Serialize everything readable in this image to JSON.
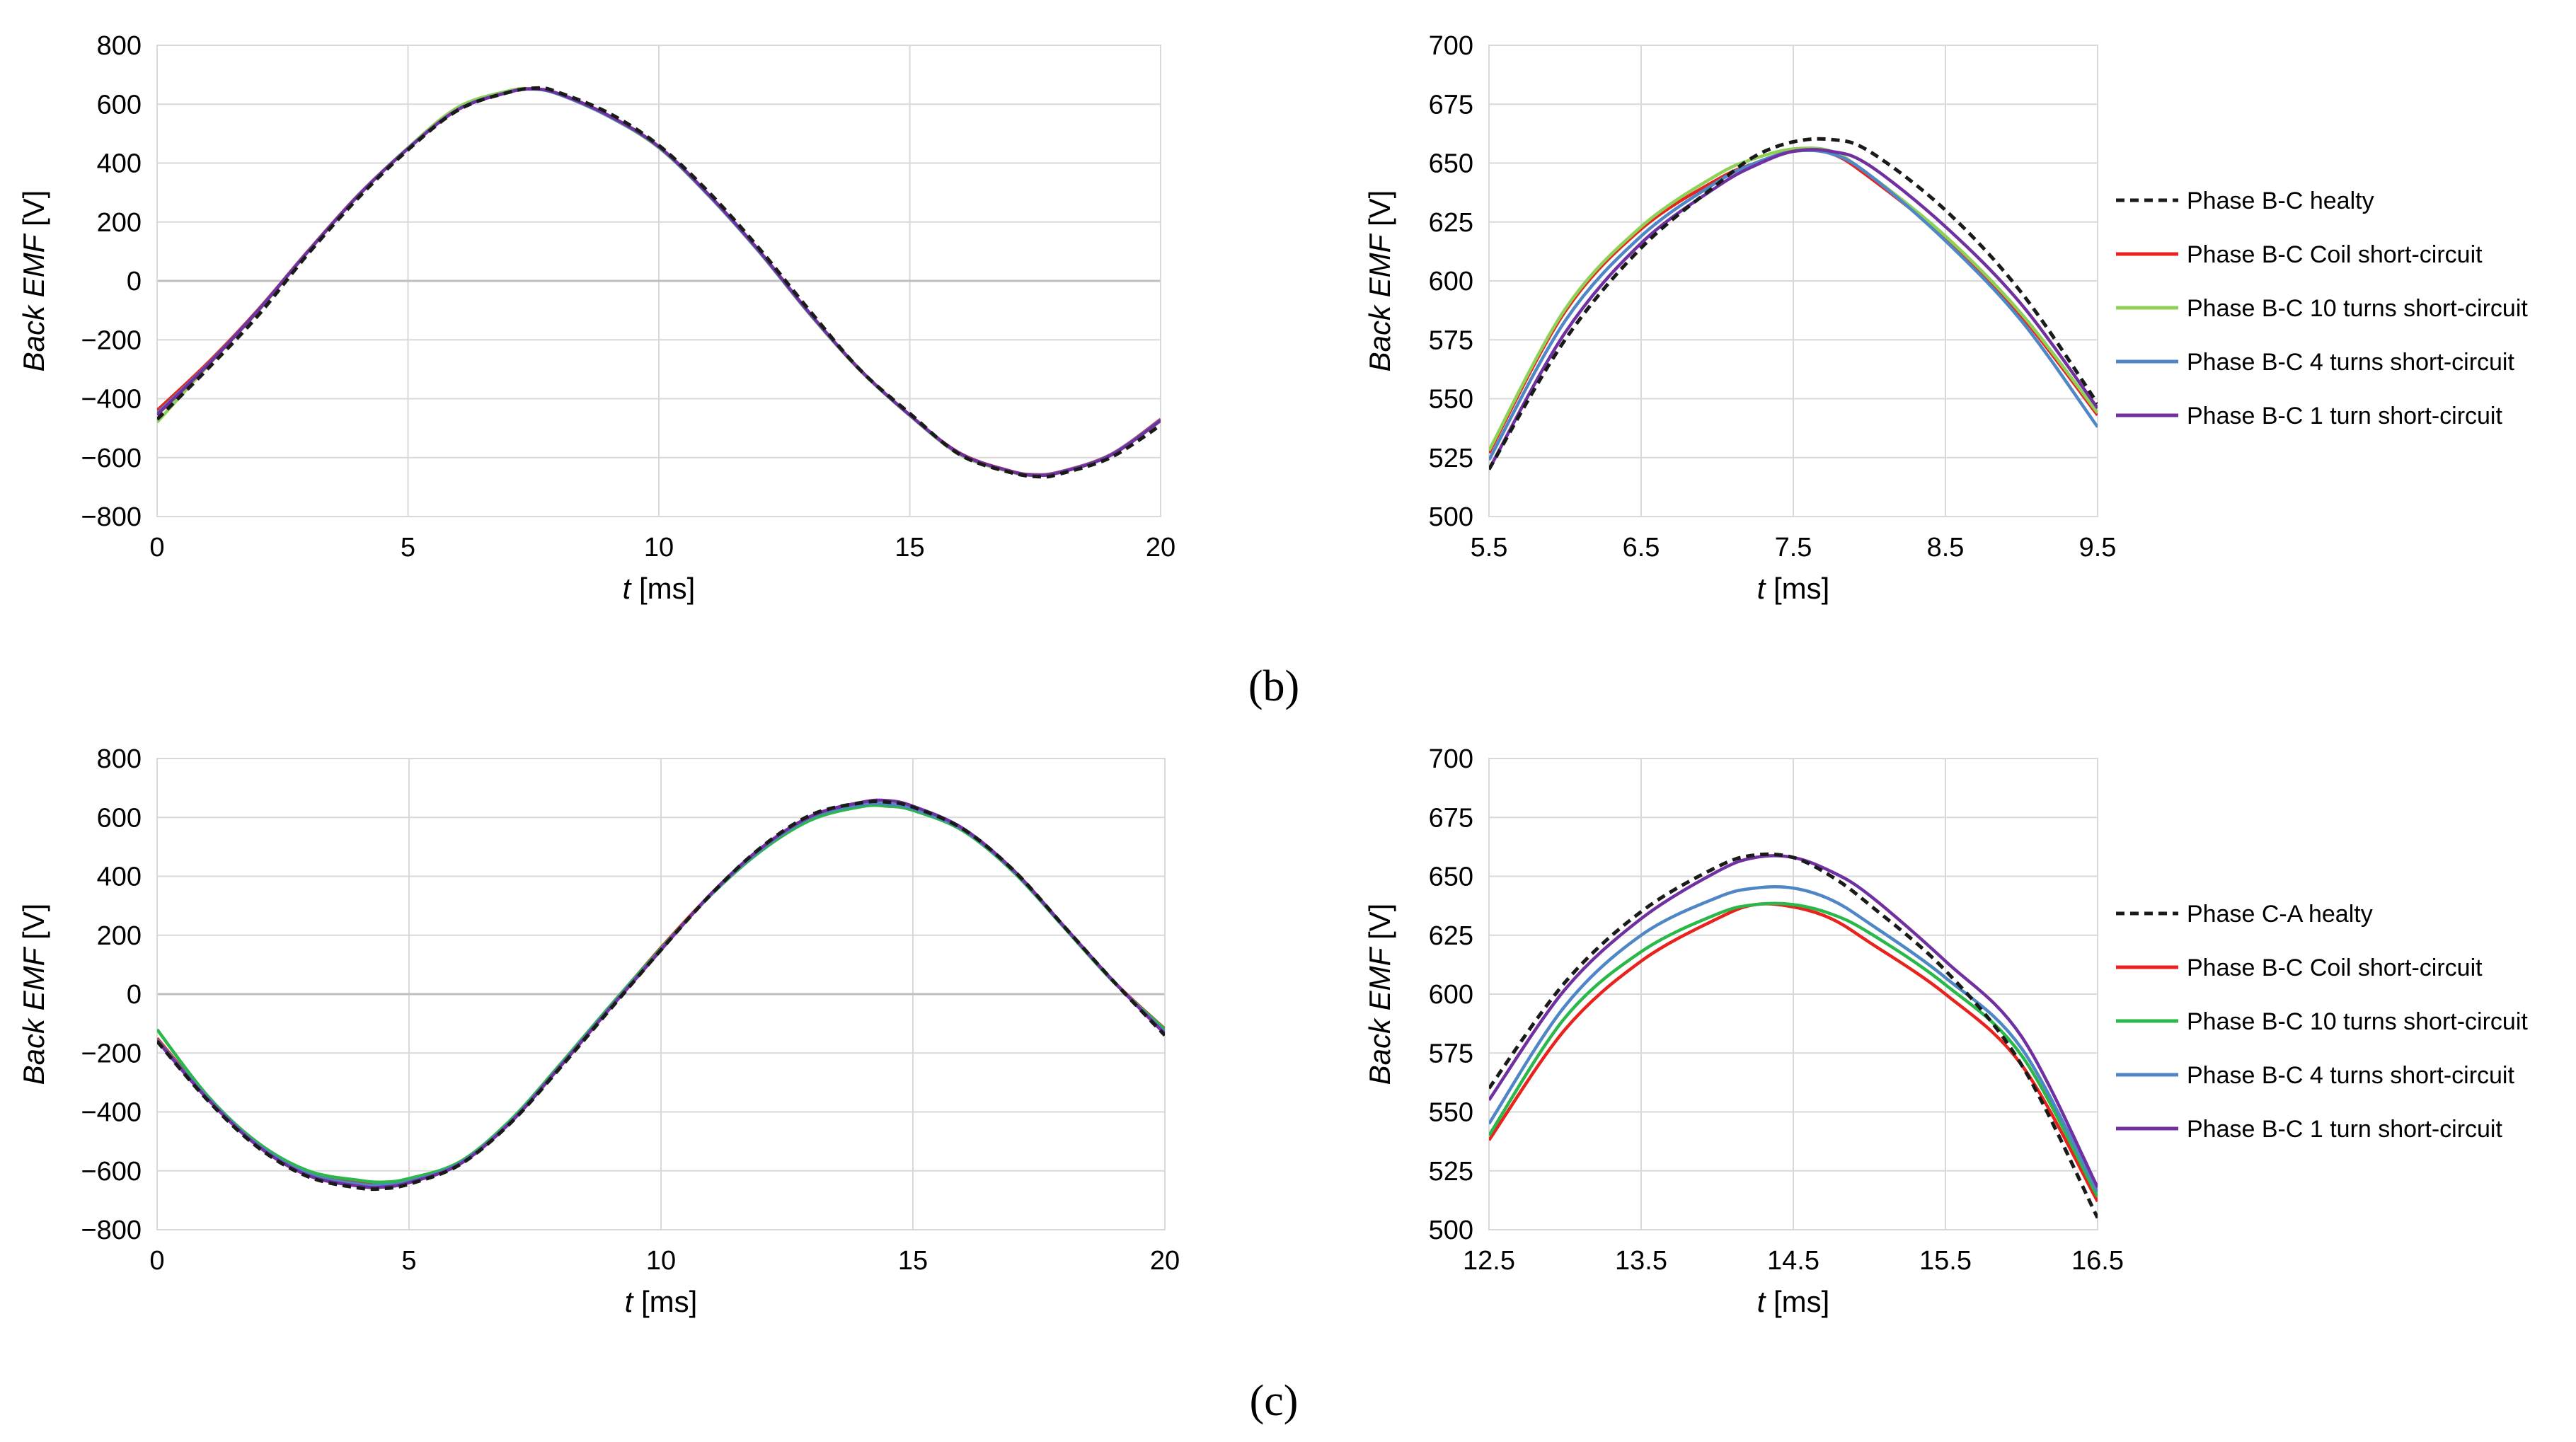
{
  "chart_data": [
    {
      "type": "line",
      "panel": "b-full",
      "xlabel_var": "t",
      "xlabel_unit": " [ms]",
      "ylabel": "Back EMF [V]",
      "xlim": [
        0,
        20
      ],
      "ylim": [
        -800,
        800
      ],
      "xticks": [
        "0",
        "5",
        "10",
        "15",
        "20"
      ],
      "yticks": [
        "800",
        "600",
        "400",
        "200",
        "0",
        "−200",
        "−400",
        "−600",
        "−800"
      ],
      "series": [
        {
          "name": "Phase B-C healty",
          "color": "#1a1a1a",
          "dashed": true,
          "x": [
            0,
            1,
            2,
            3,
            4,
            5,
            6,
            7,
            7.6,
            8,
            9,
            10,
            11,
            12,
            13,
            14,
            15,
            16,
            17,
            17.6,
            18,
            19,
            20
          ],
          "y": [
            -470,
            -300,
            -120,
            90,
            280,
            445,
            580,
            640,
            655,
            640,
            570,
            460,
            300,
            110,
            -100,
            -300,
            -450,
            -590,
            -650,
            -665,
            -655,
            -600,
            -490
          ]
        },
        {
          "name": "Phase B-C Coil short-circuit",
          "color": "#e8221d",
          "dashed": false,
          "x": [
            0,
            1,
            2,
            3,
            4,
            5,
            6,
            7,
            7.5,
            8,
            9,
            10,
            11,
            12,
            13,
            14,
            15,
            16,
            17,
            17.5,
            18,
            19,
            20
          ],
          "y": [
            -440,
            -280,
            -100,
            100,
            290,
            450,
            585,
            642,
            652,
            635,
            560,
            455,
            290,
            100,
            -110,
            -300,
            -455,
            -585,
            -645,
            -658,
            -648,
            -590,
            -470
          ]
        },
        {
          "name": "Phase B-C 10 turns short-circuit",
          "color": "#8fd056",
          "dashed": false,
          "x": [
            0,
            1,
            2,
            3,
            4,
            5,
            6,
            7,
            7.5,
            8,
            9,
            10,
            11,
            12,
            13,
            14,
            15,
            16,
            17,
            17.5,
            18,
            19,
            20
          ],
          "y": [
            -480,
            -290,
            -105,
            98,
            288,
            452,
            590,
            645,
            652,
            634,
            558,
            452,
            288,
            98,
            -112,
            -302,
            -457,
            -590,
            -648,
            -660,
            -650,
            -592,
            -475
          ]
        },
        {
          "name": "Phase B-C 4 turns short-circuit",
          "color": "#4f86c6",
          "dashed": false,
          "x": [
            0,
            1,
            2,
            3,
            4,
            5,
            6,
            7,
            7.5,
            8,
            9,
            10,
            11,
            12,
            13,
            14,
            15,
            16,
            17,
            17.5,
            18,
            19,
            20
          ],
          "y": [
            -450,
            -285,
            -102,
            99,
            289,
            450,
            583,
            641,
            651,
            634,
            559,
            454,
            289,
            99,
            -110,
            -301,
            -456,
            -587,
            -646,
            -659,
            -649,
            -591,
            -472
          ]
        },
        {
          "name": "Phase B-C 1 turn short-circuit",
          "color": "#7030a0",
          "dashed": false,
          "x": [
            0,
            1,
            2,
            3,
            4,
            5,
            6,
            7,
            7.5,
            8,
            9,
            10,
            11,
            12,
            13,
            14,
            15,
            16,
            17,
            17.5,
            18,
            19,
            20
          ],
          "y": [
            -455,
            -287,
            -103,
            98,
            288,
            449,
            582,
            640,
            652,
            636,
            562,
            456,
            292,
            102,
            -108,
            -300,
            -455,
            -586,
            -646,
            -660,
            -650,
            -593,
            -474
          ]
        }
      ]
    },
    {
      "type": "line",
      "panel": "b-zoom",
      "xlabel_var": "t",
      "xlabel_unit": " [ms]",
      "ylabel": "Back EMF [V]",
      "xlim": [
        5.5,
        9.5
      ],
      "ylim": [
        500,
        700
      ],
      "xticks": [
        "5.5",
        "6.5",
        "7.5",
        "8.5",
        "9.5"
      ],
      "yticks": [
        "700",
        "675",
        "650",
        "625",
        "600",
        "575",
        "550",
        "525",
        "500"
      ],
      "series": [
        {
          "name": "Phase B-C healty",
          "color": "#1a1a1a",
          "dashed": true,
          "x": [
            5.5,
            6,
            6.5,
            7,
            7.25,
            7.5,
            7.75,
            8,
            8.5,
            9,
            9.5
          ],
          "y": [
            520,
            575,
            614,
            641,
            653,
            659,
            660,
            655,
            630,
            595,
            548
          ]
        },
        {
          "name": "Phase B-C Coil short-circuit",
          "color": "#e8221d",
          "dashed": false,
          "x": [
            5.5,
            6,
            6.5,
            7,
            7.25,
            7.5,
            7.75,
            8,
            8.5,
            9,
            9.5
          ],
          "y": [
            527,
            587,
            622,
            643,
            650,
            655,
            654,
            644,
            618,
            585,
            543
          ]
        },
        {
          "name": "Phase B-C 10 turns short-circuit",
          "color": "#8fd056",
          "dashed": false,
          "x": [
            5.5,
            6,
            6.5,
            7,
            7.25,
            7.5,
            7.75,
            8,
            8.5,
            9,
            9.5
          ],
          "y": [
            528,
            588,
            623,
            645,
            652,
            656,
            655,
            645,
            619,
            586,
            544
          ]
        },
        {
          "name": "Phase B-C 4 turns short-circuit",
          "color": "#4f86c6",
          "dashed": false,
          "x": [
            5.5,
            6,
            6.5,
            7,
            7.25,
            7.5,
            7.75,
            8,
            8.5,
            9,
            9.5
          ],
          "y": [
            524,
            583,
            619,
            642,
            650,
            655,
            654,
            645,
            617,
            583,
            538
          ]
        },
        {
          "name": "Phase B-C 1 turn short-circuit",
          "color": "#7030a0",
          "dashed": false,
          "x": [
            5.5,
            6,
            6.5,
            7,
            7.25,
            7.5,
            7.75,
            8,
            8.5,
            9,
            9.5
          ],
          "y": [
            520,
            578,
            616,
            640,
            649,
            655,
            655,
            649,
            623,
            590,
            546
          ]
        }
      ],
      "legend_position": "right"
    },
    {
      "type": "line",
      "panel": "c-full",
      "xlabel_var": "t",
      "xlabel_unit": " [ms]",
      "ylabel": "Back EMF [V]",
      "xlim": [
        0,
        20
      ],
      "ylim": [
        -800,
        800
      ],
      "xticks": [
        "0",
        "5",
        "10",
        "15",
        "20"
      ],
      "yticks": [
        "800",
        "600",
        "400",
        "200",
        "0",
        "−200",
        "−400",
        "−600",
        "−800"
      ],
      "series": [
        {
          "name": "Phase C-A healty",
          "color": "#1a1a1a",
          "dashed": true,
          "x": [
            0,
            1,
            2,
            3,
            4,
            4.5,
            5,
            6,
            7,
            8,
            9,
            10,
            11,
            12,
            13,
            14,
            14.5,
            15,
            16,
            17,
            18,
            19,
            20
          ],
          "y": [
            -160,
            -360,
            -520,
            -620,
            -658,
            -660,
            -645,
            -580,
            -440,
            -250,
            -50,
            150,
            340,
            500,
            610,
            650,
            652,
            635,
            560,
            420,
            230,
            40,
            -140
          ]
        },
        {
          "name": "Phase B-C Coil short-circuit",
          "color": "#e8221d",
          "dashed": false,
          "x": [
            0,
            1,
            2,
            3,
            4,
            4.5,
            5,
            6,
            7,
            8,
            9,
            10,
            11,
            12,
            13,
            14,
            14.5,
            15,
            16,
            17,
            18,
            19,
            20
          ],
          "y": [
            -150,
            -350,
            -510,
            -605,
            -635,
            -640,
            -628,
            -572,
            -432,
            -240,
            -40,
            158,
            340,
            490,
            595,
            638,
            638,
            625,
            555,
            415,
            228,
            40,
            -118
          ]
        },
        {
          "name": "Phase B-C 10 turns short-circuit",
          "color": "#2bb84a",
          "dashed": false,
          "x": [
            0,
            1,
            2,
            3,
            4,
            4.5,
            5,
            6,
            7,
            8,
            9,
            10,
            11,
            12,
            13,
            14,
            14.5,
            15,
            16,
            17,
            18,
            19,
            20
          ],
          "y": [
            -120,
            -345,
            -505,
            -600,
            -632,
            -638,
            -626,
            -570,
            -430,
            -238,
            -38,
            155,
            338,
            488,
            593,
            637,
            638,
            624,
            554,
            414,
            226,
            38,
            -120
          ]
        },
        {
          "name": "Phase B-C 4 turns short-circuit",
          "color": "#4f86c6",
          "dashed": false,
          "x": [
            0,
            1,
            2,
            3,
            4,
            4.5,
            5,
            6,
            7,
            8,
            9,
            10,
            11,
            12,
            13,
            14,
            14.5,
            15,
            16,
            17,
            18,
            19,
            20
          ],
          "y": [
            -155,
            -352,
            -512,
            -610,
            -645,
            -648,
            -636,
            -575,
            -436,
            -244,
            -44,
            152,
            340,
            494,
            602,
            644,
            645,
            630,
            558,
            418,
            229,
            40,
            -130
          ]
        },
        {
          "name": "Phase B-C 1 turn short-circuit",
          "color": "#7030a0",
          "dashed": false,
          "x": [
            0,
            1,
            2,
            3,
            4,
            4.5,
            5,
            6,
            7,
            8,
            9,
            10,
            11,
            12,
            13,
            14,
            14.5,
            15,
            16,
            17,
            18,
            19,
            20
          ],
          "y": [
            -158,
            -356,
            -516,
            -616,
            -652,
            -655,
            -640,
            -578,
            -438,
            -246,
            -46,
            150,
            342,
            498,
            606,
            652,
            657,
            638,
            562,
            420,
            230,
            40,
            -135
          ]
        }
      ]
    },
    {
      "type": "line",
      "panel": "c-zoom",
      "xlabel_var": "t",
      "xlabel_unit": " [ms]",
      "ylabel": "Back EMF [V]",
      "xlim": [
        12.5,
        16.5
      ],
      "ylim": [
        500,
        700
      ],
      "xticks": [
        "12.5",
        "13.5",
        "14.5",
        "15.5",
        "16.5"
      ],
      "yticks": [
        "700",
        "675",
        "650",
        "625",
        "600",
        "575",
        "550",
        "525",
        "500"
      ],
      "series": [
        {
          "name": "Phase C-A healty",
          "color": "#1a1a1a",
          "dashed": true,
          "x": [
            12.5,
            13,
            13.5,
            14,
            14.25,
            14.5,
            14.75,
            15,
            15.5,
            16,
            16.5
          ],
          "y": [
            560,
            605,
            635,
            654,
            659,
            658,
            650,
            638,
            610,
            570,
            505
          ]
        },
        {
          "name": "Phase B-C Coil short-circuit",
          "color": "#e8221d",
          "dashed": false,
          "x": [
            12.5,
            13,
            13.5,
            14,
            14.25,
            14.5,
            14.75,
            15,
            15.5,
            16,
            16.5
          ],
          "y": [
            538,
            585,
            614,
            632,
            638,
            637,
            632,
            622,
            600,
            570,
            512
          ]
        },
        {
          "name": "Phase B-C 10 turns short-circuit",
          "color": "#2bb84a",
          "dashed": false,
          "x": [
            12.5,
            13,
            13.5,
            14,
            14.25,
            14.5,
            14.75,
            15,
            15.5,
            16,
            16.5
          ],
          "y": [
            540,
            590,
            618,
            634,
            638,
            638,
            634,
            626,
            604,
            574,
            514
          ]
        },
        {
          "name": "Phase B-C 4 turns short-circuit",
          "color": "#4f86c6",
          "dashed": false,
          "x": [
            12.5,
            13,
            13.5,
            14,
            14.25,
            14.5,
            14.75,
            15,
            15.5,
            16,
            16.5
          ],
          "y": [
            545,
            595,
            625,
            641,
            645,
            645,
            640,
            630,
            607,
            577,
            516
          ]
        },
        {
          "name": "Phase B-C 1 turn short-circuit",
          "color": "#7030a0",
          "dashed": false,
          "x": [
            12.5,
            13,
            13.5,
            14,
            14.25,
            14.5,
            14.75,
            15,
            15.5,
            16,
            16.5
          ],
          "y": [
            555,
            602,
            632,
            652,
            658,
            658,
            652,
            642,
            614,
            582,
            518
          ]
        }
      ],
      "legend_position": "right"
    }
  ],
  "labels": {
    "b": "(b)",
    "c": "(c)"
  }
}
